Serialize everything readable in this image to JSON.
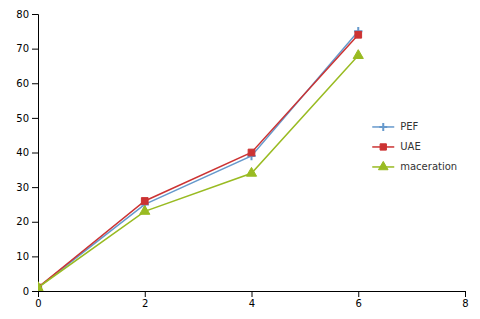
{
  "chart_data": {
    "type": "line",
    "x": [
      0,
      2,
      4,
      6
    ],
    "series": [
      {
        "name": "PEF",
        "color": "#6699cc",
        "marker": "plus",
        "values": [
          1,
          25,
          39,
          75
        ]
      },
      {
        "name": "UAE",
        "color": "#cc3333",
        "marker": "square",
        "values": [
          1,
          26,
          40,
          74
        ]
      },
      {
        "name": "maceration",
        "color": "#99bb22",
        "marker": "triangle",
        "values": [
          1,
          23,
          34,
          68
        ]
      }
    ],
    "xlim": [
      0,
      8
    ],
    "ylim": [
      0,
      80
    ],
    "xticks": [
      0,
      2,
      4,
      6,
      8
    ],
    "yticks": [
      0,
      10,
      20,
      30,
      40,
      50,
      60,
      70,
      80
    ],
    "legend": "right",
    "grid": false
  }
}
